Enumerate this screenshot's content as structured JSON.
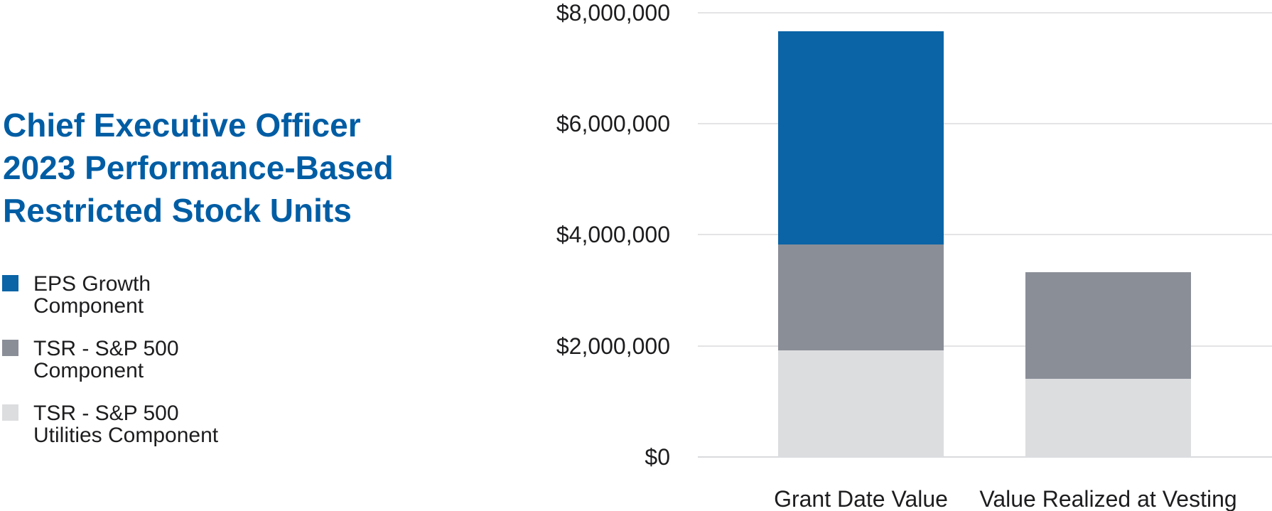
{
  "header": {
    "title_lines": [
      "Chief Executive Officer",
      "2023 Performance-Based",
      "Restricted Stock Units"
    ],
    "title_color": "#005DA4"
  },
  "legend": {
    "items": [
      {
        "id": "eps-growth",
        "label_lines": [
          "EPS Growth",
          "Component"
        ],
        "color": "#0A64A6"
      },
      {
        "id": "tsr-sp500",
        "label_lines": [
          "TSR - S&P 500",
          "Component"
        ],
        "color": "#8A8E97"
      },
      {
        "id": "tsr-sp500-utilities",
        "label_lines": [
          "TSR - S&P 500",
          "Utilities Component"
        ],
        "color": "#DCDDDF"
      }
    ]
  },
  "chart_data": {
    "type": "bar",
    "stacked": true,
    "title": "Chief Executive Officer 2023 Performance-Based Restricted Stock Units",
    "categories": [
      "Grant Date Value",
      "Value Realized at Vesting"
    ],
    "series": [
      {
        "name": "TSR - S&P 500 Utilities Component",
        "color": "#DCDDDF",
        "values": [
          1920000,
          1410000
        ]
      },
      {
        "name": "TSR - S&P 500 Component",
        "color": "#8A8E97",
        "values": [
          1900000,
          1920000
        ]
      },
      {
        "name": "EPS Growth Component",
        "color": "#0A64A6",
        "values": [
          3840000,
          0
        ]
      }
    ],
    "totals": [
      7660000,
      3330000
    ],
    "xlabel": "",
    "ylabel": "",
    "ylim": [
      0,
      8000000
    ],
    "ytick_step": 2000000,
    "ytick_labels": [
      "$0",
      "$2,000,000",
      "$4,000,000",
      "$6,000,000",
      "$8,000,000"
    ],
    "grid": true,
    "gridline_color": "#E4E4E6",
    "baseline_color": "#DADBDD",
    "axis_text_color": "#1D1D1F",
    "legend_position": "left"
  }
}
